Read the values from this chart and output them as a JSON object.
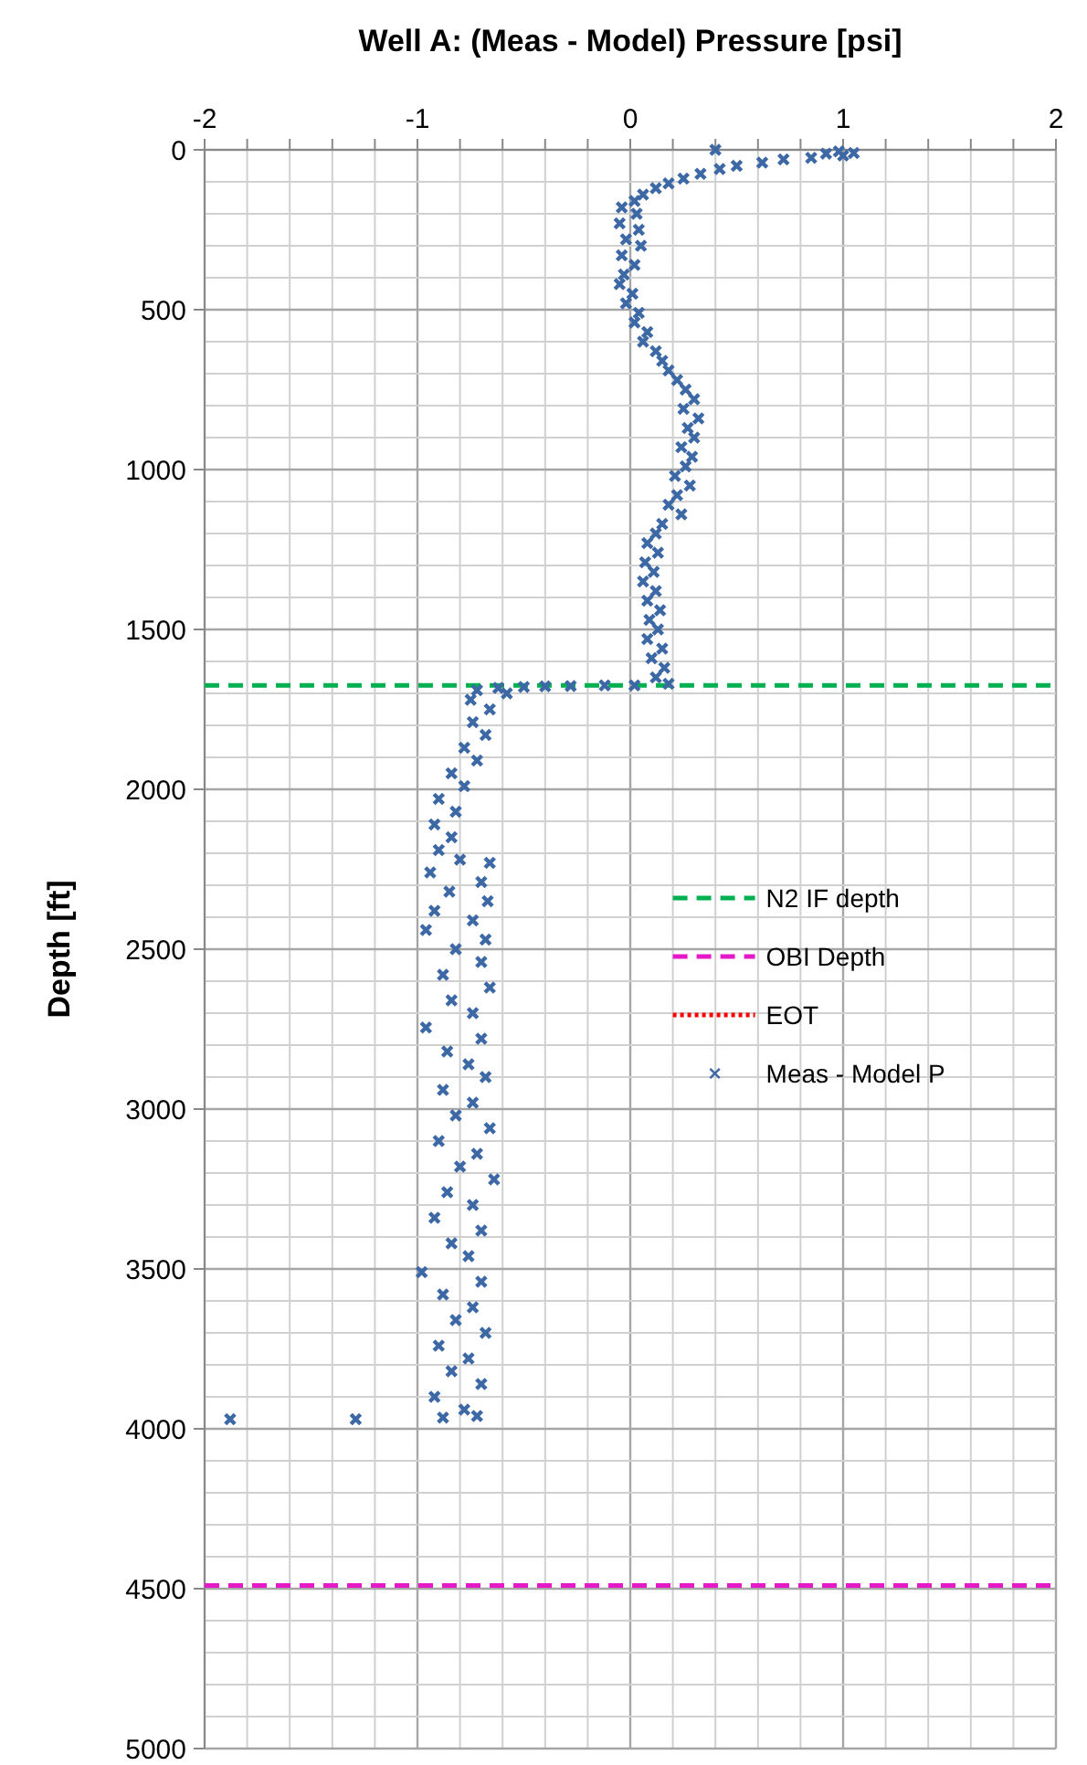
{
  "chart_data": {
    "type": "scatter",
    "xlabel": "Well A: (Meas - Model) Pressure [psi]",
    "ylabel": "Depth [ft]",
    "xlim": [
      -2,
      2
    ],
    "xticks": [
      -2,
      {
        "value": -1.8,
        "label": null
      },
      {
        "value": -1.6,
        "label": null
      },
      {
        "value": -1.4,
        "label": null
      },
      {
        "value": -1.2,
        "label": null
      },
      -1,
      {
        "value": -0.8,
        "label": null
      },
      {
        "value": -0.6,
        "label": null
      },
      {
        "value": -0.4,
        "label": null
      },
      {
        "value": -0.2,
        "label": null
      },
      0,
      {
        "value": 0.2,
        "label": null
      },
      {
        "value": 0.4,
        "label": null
      },
      {
        "value": 0.6,
        "label": null
      },
      {
        "value": 0.8,
        "label": null
      },
      1,
      {
        "value": 1.2,
        "label": null
      },
      {
        "value": 1.4,
        "label": null
      },
      {
        "value": 1.6,
        "label": null
      },
      {
        "value": 1.8,
        "label": null
      },
      2
    ],
    "ylim": [
      5000,
      0
    ],
    "yticks": [
      0,
      {
        "value": 100,
        "label": null
      },
      {
        "value": 200,
        "label": null
      },
      {
        "value": 300,
        "label": null
      },
      {
        "value": 400,
        "label": null
      },
      500,
      {
        "value": 600,
        "label": null
      },
      {
        "value": 700,
        "label": null
      },
      {
        "value": 800,
        "label": null
      },
      {
        "value": 900,
        "label": null
      },
      1000,
      {
        "value": 1100,
        "label": null
      },
      {
        "value": 1200,
        "label": null
      },
      {
        "value": 1300,
        "label": null
      },
      {
        "value": 1400,
        "label": null
      },
      1500,
      {
        "value": 1600,
        "label": null
      },
      {
        "value": 1700,
        "label": null
      },
      {
        "value": 1800,
        "label": null
      },
      {
        "value": 1900,
        "label": null
      },
      2000,
      {
        "value": 2100,
        "label": null
      },
      {
        "value": 2200,
        "label": null
      },
      {
        "value": 2300,
        "label": null
      },
      {
        "value": 2400,
        "label": null
      },
      2500,
      {
        "value": 2600,
        "label": null
      },
      {
        "value": 2700,
        "label": null
      },
      {
        "value": 2800,
        "label": null
      },
      {
        "value": 2900,
        "label": null
      },
      3000,
      {
        "value": 3100,
        "label": null
      },
      {
        "value": 3200,
        "label": null
      },
      {
        "value": 3300,
        "label": null
      },
      {
        "value": 3400,
        "label": null
      },
      3500,
      {
        "value": 3600,
        "label": null
      },
      {
        "value": 3700,
        "label": null
      },
      {
        "value": 3800,
        "label": null
      },
      {
        "value": 3900,
        "label": null
      },
      4000,
      {
        "value": 4100,
        "label": null
      },
      {
        "value": 4200,
        "label": null
      },
      {
        "value": 4300,
        "label": null
      },
      {
        "value": 4400,
        "label": null
      },
      4500,
      {
        "value": 4600,
        "label": null
      },
      {
        "value": 4700,
        "label": null
      },
      {
        "value": 4800,
        "label": null
      },
      {
        "value": 4900,
        "label": null
      },
      5000
    ],
    "grid": true,
    "legend": "right",
    "ref_lines": [
      {
        "axis": "y",
        "value": 1675,
        "label": "N2 IF depth",
        "color": "#00b050",
        "line_style": "dashed"
      },
      {
        "axis": "y",
        "value": 4490,
        "label": "OBI Depth",
        "color": "#e619c8",
        "line_style": "dashed"
      }
    ],
    "series": [
      {
        "type": "line",
        "name": "EOT",
        "color": "#ff0000",
        "line_style": "dotted"
      },
      {
        "name": "Meas - Model P",
        "color": "#3d68a6",
        "marker": "cross",
        "x": [
          0.4,
          0.98,
          1.05,
          0.92,
          1.0,
          0.85,
          0.72,
          0.62,
          0.5,
          0.42,
          0.33,
          0.25,
          0.18,
          0.12,
          0.06,
          0.02,
          -0.04,
          0.03,
          -0.05,
          0.04,
          -0.02,
          0.05,
          -0.04,
          0.02,
          -0.03,
          -0.05,
          0.01,
          -0.02,
          0.04,
          0.02,
          0.08,
          0.06,
          0.12,
          0.15,
          0.18,
          0.22,
          0.26,
          0.3,
          0.25,
          0.32,
          0.27,
          0.3,
          0.24,
          0.29,
          0.26,
          0.21,
          0.28,
          0.22,
          0.18,
          0.24,
          0.15,
          0.12,
          0.08,
          0.13,
          0.07,
          0.11,
          0.06,
          0.12,
          0.08,
          0.14,
          0.09,
          0.13,
          0.08,
          0.15,
          0.1,
          0.16,
          0.12,
          0.18,
          0.02,
          -0.12,
          -0.28,
          -0.4,
          -0.5,
          -0.62,
          -0.72,
          -0.58,
          -0.75,
          -0.66,
          -0.74,
          -0.68,
          -0.78,
          -0.72,
          -0.84,
          -0.78,
          -0.9,
          -0.82,
          -0.92,
          -0.84,
          -0.9,
          -0.8,
          -0.66,
          -0.94,
          -0.7,
          -0.85,
          -0.67,
          -0.92,
          -0.74,
          -0.96,
          -0.68,
          -0.82,
          -0.7,
          -0.88,
          -0.66,
          -0.84,
          -0.74,
          -0.96,
          -0.7,
          -0.86,
          -0.76,
          -0.68,
          -0.88,
          -0.74,
          -0.82,
          -0.66,
          -0.9,
          -0.72,
          -0.8,
          -0.64,
          -0.86,
          -0.74,
          -0.92,
          -0.7,
          -0.84,
          -0.76,
          -0.98,
          -0.7,
          -0.88,
          -0.74,
          -0.82,
          -0.68,
          -0.9,
          -0.76,
          -0.84,
          -0.7,
          -0.92,
          -0.78,
          -0.72,
          -0.88,
          -1.88,
          -1.29
        ],
        "values": [
          0,
          5,
          10,
          12,
          18,
          25,
          30,
          40,
          50,
          60,
          75,
          90,
          105,
          120,
          140,
          160,
          180,
          200,
          230,
          250,
          280,
          300,
          330,
          360,
          390,
          420,
          450,
          480,
          510,
          540,
          570,
          600,
          630,
          660,
          690,
          720,
          750,
          780,
          810,
          840,
          870,
          900,
          930,
          960,
          990,
          1020,
          1050,
          1080,
          1110,
          1140,
          1170,
          1200,
          1230,
          1260,
          1290,
          1320,
          1350,
          1380,
          1410,
          1440,
          1470,
          1500,
          1530,
          1560,
          1590,
          1620,
          1650,
          1670,
          1675,
          1675,
          1677,
          1678,
          1680,
          1683,
          1690,
          1700,
          1720,
          1750,
          1790,
          1830,
          1870,
          1910,
          1950,
          1990,
          2030,
          2070,
          2110,
          2150,
          2190,
          2220,
          2230,
          2260,
          2290,
          2320,
          2350,
          2380,
          2410,
          2440,
          2470,
          2500,
          2540,
          2580,
          2620,
          2660,
          2700,
          2745,
          2780,
          2820,
          2860,
          2900,
          2940,
          2980,
          3020,
          3060,
          3100,
          3140,
          3180,
          3220,
          3260,
          3300,
          3340,
          3380,
          3420,
          3460,
          3510,
          3540,
          3580,
          3620,
          3660,
          3700,
          3740,
          3780,
          3820,
          3860,
          3900,
          3940,
          3960,
          3965,
          3970,
          3970
        ]
      }
    ]
  }
}
